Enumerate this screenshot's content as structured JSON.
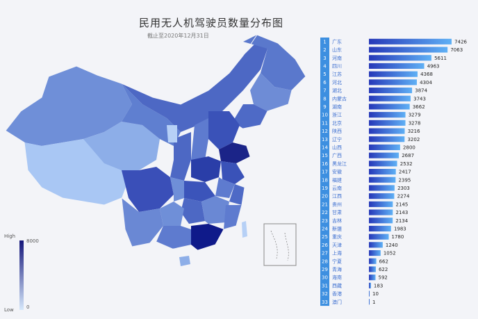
{
  "title": "民用无人机驾驶员数量分布图",
  "subtitle": "截止至2020年12月31日",
  "legend": {
    "high_label": "High",
    "low_label": "Low",
    "max": "8000",
    "min": "0"
  },
  "colors": {
    "dark": "#14167a",
    "light": "#cfe3fa",
    "rank_bg": "#3d8fe0"
  },
  "chart_data": {
    "type": "bar",
    "orientation": "horizontal",
    "title": "民用无人机驾驶员数量分布图",
    "subtitle": "截止至2020年12月31日",
    "categories": [
      "广东",
      "山东",
      "河南",
      "四川",
      "江苏",
      "河北",
      "湖北",
      "内蒙古",
      "湖南",
      "浙江",
      "北京",
      "陕西",
      "辽宁",
      "山西",
      "广西",
      "黑龙江",
      "安徽",
      "福建",
      "云南",
      "江西",
      "贵州",
      "甘肃",
      "吉林",
      "新疆",
      "重庆",
      "天津",
      "上海",
      "宁夏",
      "青海",
      "海南",
      "西藏",
      "香港",
      "澳门"
    ],
    "values": [
      7426,
      7063,
      5611,
      4963,
      4368,
      4304,
      3874,
      3743,
      3662,
      3279,
      3278,
      3216,
      3202,
      2800,
      2687,
      2532,
      2417,
      2395,
      2303,
      2274,
      2145,
      2143,
      2134,
      1983,
      1780,
      1240,
      1052,
      662,
      622,
      592,
      183,
      10,
      1
    ],
    "ranks": [
      "1",
      "2",
      "3",
      "4",
      "5",
      "6",
      "7",
      "8",
      "9",
      "10",
      "11",
      "12",
      "13",
      "14",
      "15",
      "16",
      "17",
      "18",
      "19",
      "20",
      "21",
      "22",
      "23",
      "24",
      "25",
      "26",
      "27",
      "28",
      "29",
      "30",
      "31",
      "32",
      "33"
    ],
    "xlim": [
      0,
      7426
    ],
    "legend_range": [
      0,
      8000
    ]
  }
}
